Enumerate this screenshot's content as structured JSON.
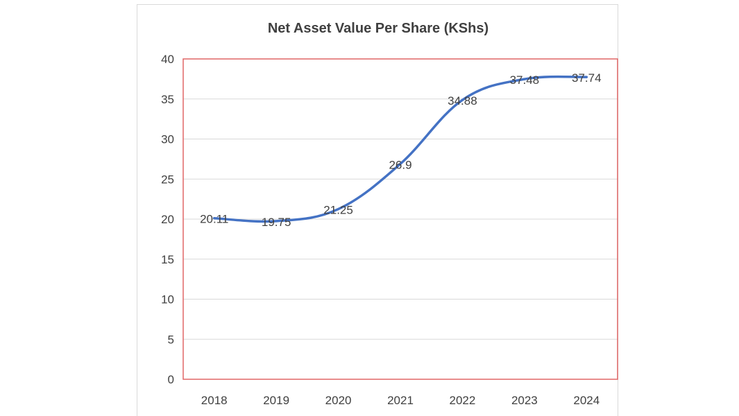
{
  "chart_data": {
    "type": "line",
    "title": "Net Asset Value Per Share (KShs)",
    "xlabel": "",
    "ylabel": "",
    "categories": [
      "2018",
      "2019",
      "2020",
      "2021",
      "2022",
      "2023",
      "2024"
    ],
    "series": [
      {
        "values": [
          20.11,
          19.75,
          21.25,
          26.9,
          34.88,
          37.48,
          37.74
        ],
        "labels": [
          "20.11",
          "19.75",
          "21.25",
          "26.9",
          "34.88",
          "37.48",
          "37.74"
        ]
      }
    ],
    "ylim": [
      0,
      40
    ],
    "yticks": [
      "0",
      "5",
      "10",
      "15",
      "20",
      "25",
      "30",
      "35",
      "40"
    ],
    "grid": true,
    "legend": "none",
    "colors": {
      "line": "#4472c4",
      "plot_border": "#e06666",
      "grid": "#d9d9d9",
      "text": "#404040"
    }
  }
}
